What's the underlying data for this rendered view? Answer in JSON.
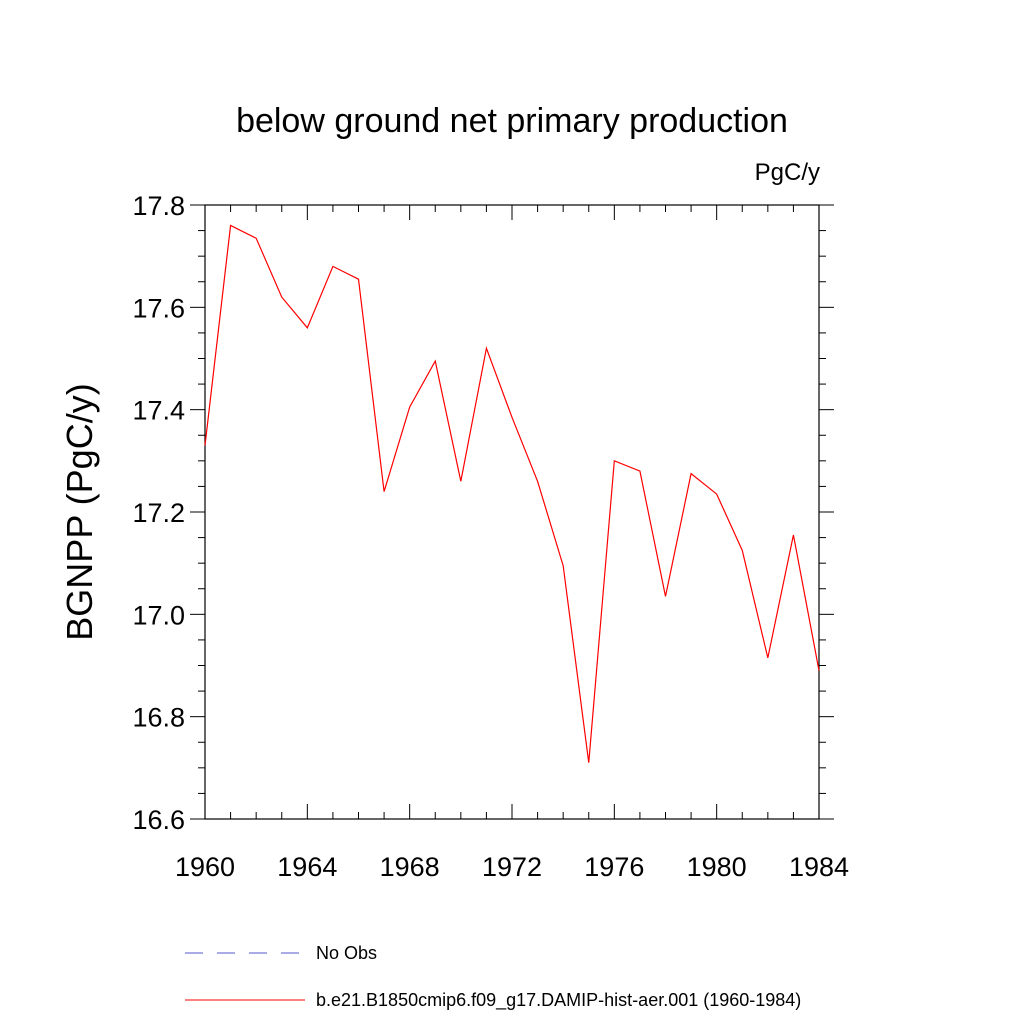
{
  "chart_data": {
    "type": "line",
    "title": "below ground net primary production",
    "units_label": "PgC/y",
    "ylabel": "BGNPP  (PgC/y)",
    "xlabel": "",
    "xlim": [
      1960,
      1984
    ],
    "ylim": [
      16.6,
      17.8
    ],
    "x_ticks": [
      1960,
      1964,
      1968,
      1972,
      1976,
      1980,
      1984
    ],
    "x_tick_labels": [
      "1960",
      "1964",
      "1968",
      "1972",
      "1976",
      "1980",
      "1984"
    ],
    "y_ticks": [
      16.6,
      16.8,
      17.0,
      17.2,
      17.4,
      17.6,
      17.8
    ],
    "y_tick_labels": [
      "16.6",
      "16.8",
      "17.0",
      "17.2",
      "17.4",
      "17.6",
      "17.8"
    ],
    "grid": false,
    "legend_position": "bottom",
    "series": [
      {
        "name": "No Obs",
        "color": "#5555cc",
        "style": "dashed",
        "x": [],
        "values": []
      },
      {
        "name": "b.e21.B1850cmip6.f09_g17.DAMIP-hist-aer.001 (1960-1984)",
        "color": "#ff0000",
        "style": "solid",
        "x": [
          1960,
          1961,
          1962,
          1963,
          1964,
          1965,
          1966,
          1967,
          1968,
          1969,
          1970,
          1971,
          1972,
          1973,
          1974,
          1975,
          1976,
          1977,
          1978,
          1979,
          1980,
          1981,
          1982,
          1983,
          1984
        ],
        "values": [
          17.33,
          17.76,
          17.735,
          17.62,
          17.56,
          17.68,
          17.655,
          17.24,
          17.405,
          17.495,
          17.26,
          17.52,
          17.385,
          17.26,
          17.095,
          16.71,
          17.3,
          17.28,
          17.035,
          17.275,
          17.235,
          17.125,
          16.915,
          17.155,
          16.89
        ]
      }
    ]
  }
}
